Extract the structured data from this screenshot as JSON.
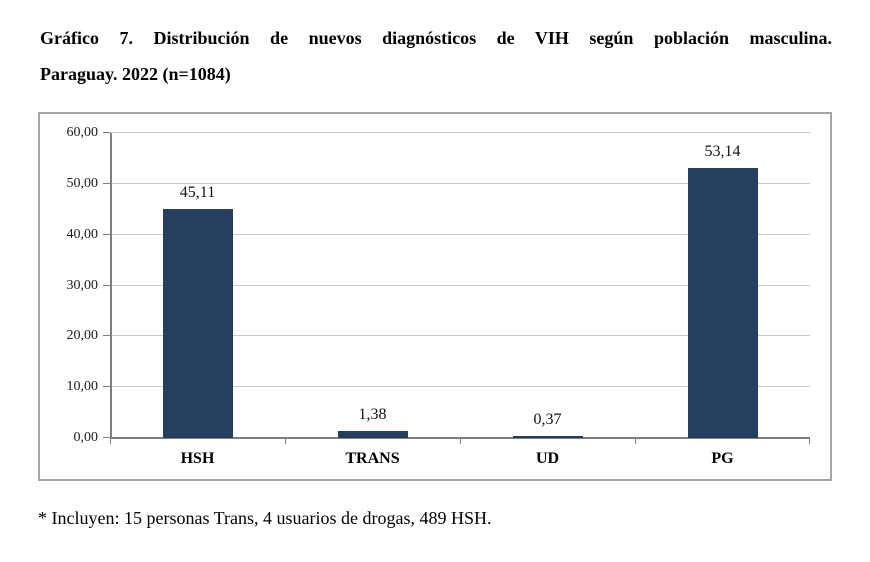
{
  "title": {
    "line1": "Gráfico 7.  Distribución de nuevos diagnósticos de VIH según población masculina.",
    "line2": "Paraguay. 2022 (n=1084)"
  },
  "footnote": "* Incluyen: 15 personas Trans, 4 usuarios de drogas, 489 HSH.",
  "chart_data": {
    "type": "bar",
    "categories": [
      "HSH",
      "TRANS",
      "UD",
      "PG"
    ],
    "values": [
      45.11,
      1.38,
      0.37,
      53.14
    ],
    "value_labels": [
      "45,11",
      "1,38",
      "0,37",
      "53,14"
    ],
    "title": "Distribución de nuevos diagnósticos de VIH según población masculina. Paraguay. 2022 (n=1084)",
    "xlabel": "",
    "ylabel": "",
    "ylim": [
      0,
      60
    ],
    "yticks": [
      {
        "value": 0,
        "label": "0,00"
      },
      {
        "value": 10,
        "label": "10,00"
      },
      {
        "value": 20,
        "label": "20,00"
      },
      {
        "value": 30,
        "label": "30,00"
      },
      {
        "value": 40,
        "label": "40,00"
      },
      {
        "value": 50,
        "label": "50,00"
      },
      {
        "value": 60,
        "label": "60,00"
      }
    ],
    "grid": true,
    "legend": false
  },
  "colors": {
    "bar": "#263e60",
    "gridline": "#c9c9c9",
    "axis": "#7f7f7f",
    "box_border": "#a6a6a6",
    "text": "#000000"
  }
}
